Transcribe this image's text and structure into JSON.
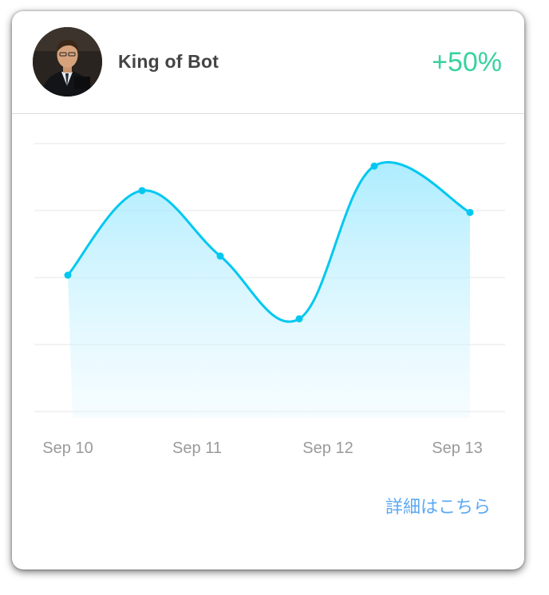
{
  "card": {
    "user_name": "King of Bot",
    "gain_text": "+50%",
    "details_link": "詳細はこちら",
    "avatar_icon": "user-avatar-photo",
    "accent_color": "#00c8f0",
    "gain_color": "#37d39e",
    "link_color": "#5aa9f5"
  },
  "chart_data": {
    "type": "area",
    "x": [
      "Sep 10",
      "",
      "Sep 11",
      "Sep 12",
      "",
      "Sep 13"
    ],
    "xticks": [
      "Sep 10",
      "Sep 11",
      "Sep 12",
      "Sep 13"
    ],
    "values": [
      0.5,
      0.81,
      0.57,
      0.34,
      0.9,
      0.73
    ],
    "ylim": [
      0,
      1
    ],
    "grid": true,
    "smooth": true,
    "color": "#00c8f0"
  }
}
